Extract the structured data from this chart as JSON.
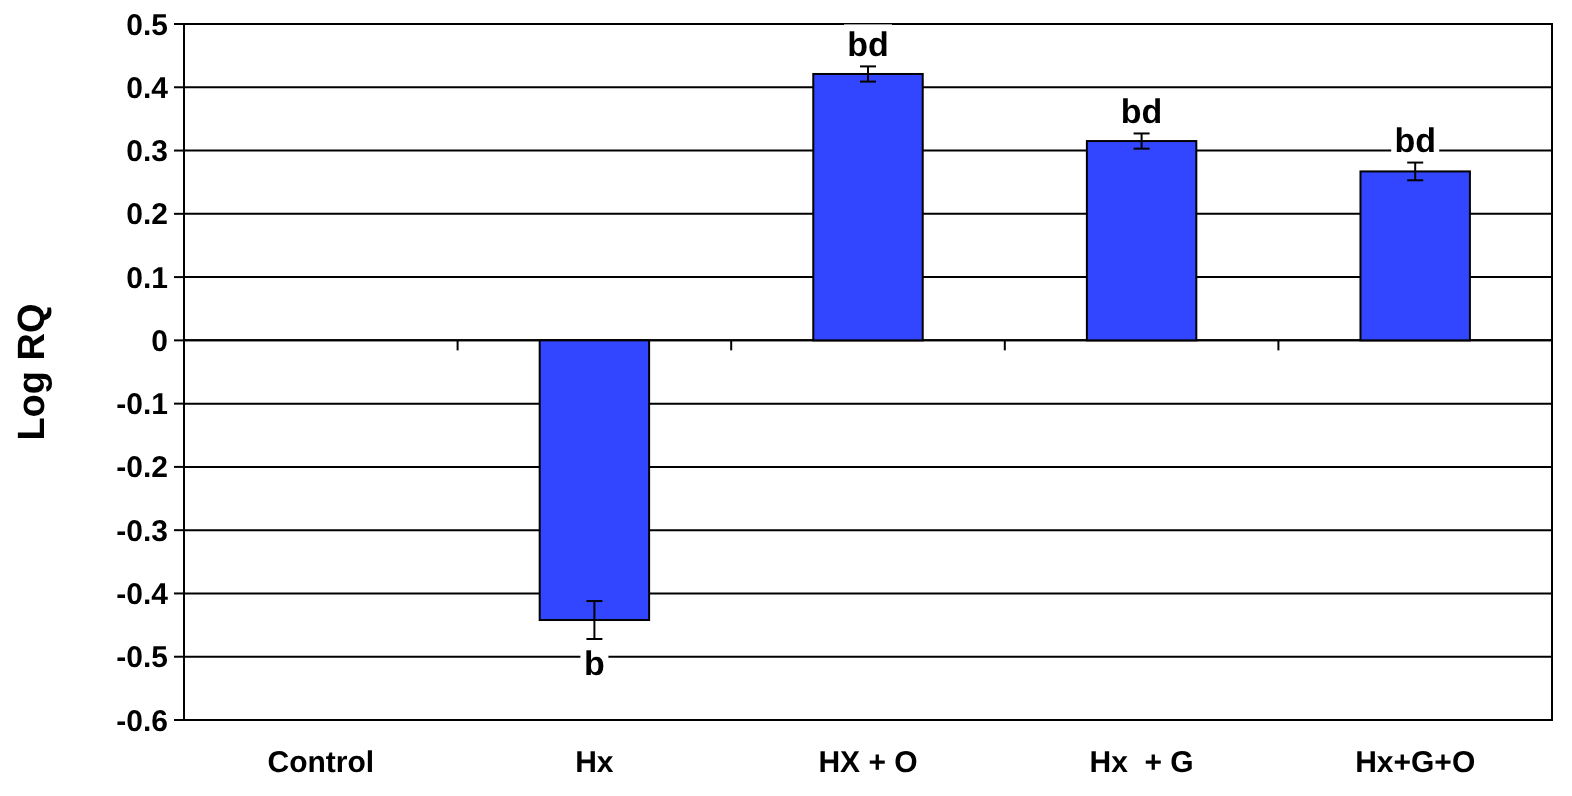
{
  "chart_data": {
    "type": "bar",
    "ylabel": "Log RQ",
    "categories": [
      "Control",
      "Hx",
      "HX + O",
      "Hx  + G",
      "Hx+G+O"
    ],
    "values": [
      0,
      -0.442,
      0.421,
      0.315,
      0.267
    ],
    "errors": [
      null,
      0.03,
      0.012,
      0.012,
      0.014
    ],
    "color": "#3346ff",
    "ylim": [
      -0.6,
      0.5
    ],
    "yticks": [
      {
        "value": -0.6,
        "label": "-0.6"
      },
      {
        "value": -0.5,
        "label": "-0.5"
      },
      {
        "value": -0.4,
        "label": "-0.4"
      },
      {
        "value": -0.3,
        "label": "-0.3"
      },
      {
        "value": -0.2,
        "label": "-0.2"
      },
      {
        "value": -0.1,
        "label": "-0.1"
      },
      0,
      0.1,
      0.2,
      0.3,
      0.4,
      0.5
    ],
    "grid": "y",
    "annotations": [
      {
        "text": "b",
        "x": "Hx",
        "y": -0.472
      },
      {
        "text": "bd",
        "x": "HX + O",
        "y": 0.433
      },
      {
        "text": "bd",
        "x": "Hx  + G",
        "y": 0.327
      },
      {
        "text": "bd",
        "x": "Hx+G+O",
        "y": 0.281
      }
    ]
  }
}
